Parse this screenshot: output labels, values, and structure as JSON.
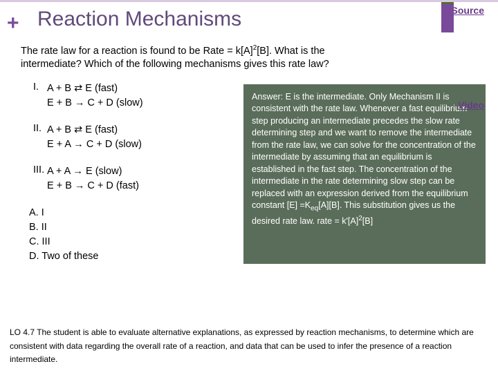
{
  "header": {
    "plus": "+",
    "title": "Reaction Mechanisms",
    "source": "Source",
    "video": "Video"
  },
  "question_l1": "The rate law for a reaction is found to be Rate = k[A]",
  "question_exp": "2",
  "question_l2": "[B].  What is the",
  "question_l3": "intermediate?  Which of the following mechanisms gives this rate law?",
  "mechanisms": {
    "m1": {
      "label": "I.",
      "line1a": "A  +  B  ",
      "arr1": "⇄",
      "line1b": "  E  (fast)",
      "line2a": "E  +  B  ",
      "arr2": "→",
      "line2b": " C  +  D  (slow)"
    },
    "m2": {
      "label": "II.",
      "line1a": "A  +  B  ",
      "arr1": "⇄",
      "line1b": "  E  (fast)",
      "line2a": "E  +  A  ",
      "arr2": "→",
      "line2b": " C  +  D  (slow)"
    },
    "m3": {
      "label": "III.",
      "line1a": "A  +  A  ",
      "arr1": "→",
      "line1b": "  E  (slow)",
      "line2a": "E  +  B  ",
      "arr2": "→",
      "line2b": " C  +  D  (fast)"
    }
  },
  "choices": {
    "a": "A.  I",
    "b": "B.  II",
    "c": "C.  III",
    "d": "D.  Two of these"
  },
  "answer": {
    "p1": "Answer:  E is the intermediate.  Only Mechanism II is consistent with the rate law. Whenever a fast equilibrium step producing an intermediate precedes the slow rate determining step and we want to remove the intermediate from the rate law, we can solve for the concentration of the intermediate by assuming that an equilibrium is established in the fast step.  The concentration of the intermediate in the rate determining slow step can be replaced with an expression derived from the equilibrium constant   [E] =K",
    "sub1": "eq",
    "p2": "[A][B]. This substitution gives us the desired rate law. rate = k'[A]",
    "sup1": "2",
    "p3": "[B]"
  },
  "lo": "LO 4.7 The student is able to evaluate alternative explanations, as expressed by reaction mechanisms, to determine which are consistent with data regarding the overall rate of a reaction, and data that can be used to infer the presence of a reaction intermediate.",
  "colors": {
    "accent": "#7a4a9a",
    "answer_bg": "#5a6d5a",
    "answer_fg": "#ffffff",
    "link": "#6a3a8a"
  }
}
